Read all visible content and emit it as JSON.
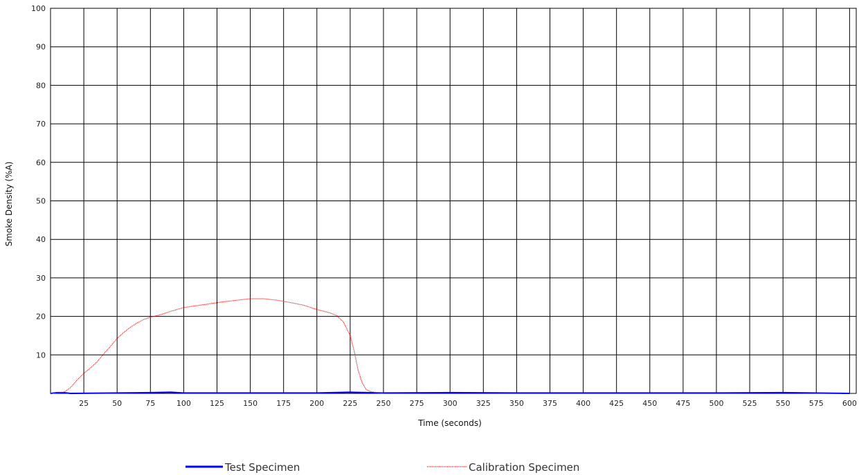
{
  "chart_data": {
    "type": "line",
    "xlabel": "Time (seconds)",
    "ylabel": "Smoke Density (%A)",
    "xlim": [
      0,
      605
    ],
    "ylim": [
      0,
      100
    ],
    "x_ticks": [
      25,
      50,
      75,
      100,
      125,
      150,
      175,
      200,
      225,
      250,
      275,
      300,
      325,
      350,
      375,
      400,
      425,
      450,
      475,
      500,
      525,
      550,
      575,
      600
    ],
    "y_ticks": [
      10,
      20,
      30,
      40,
      50,
      60,
      70,
      80,
      90,
      100
    ],
    "grid": true,
    "legend_position": "bottom",
    "series": [
      {
        "name": "Test Specimen",
        "color": "#0000ff",
        "style": "solid",
        "x": [
          0,
          5,
          10,
          15,
          50,
          75,
          90,
          100,
          150,
          200,
          225,
          250,
          300,
          350,
          400,
          450,
          500,
          550,
          600
        ],
        "y": [
          0,
          0.2,
          0.2,
          0,
          0.1,
          0.2,
          0.3,
          0.1,
          0.1,
          0.1,
          0.3,
          0.1,
          0.2,
          0.1,
          0.1,
          0.1,
          0.1,
          0.2,
          0
        ]
      },
      {
        "name": "Calibration Specimen",
        "color": "#ff0000",
        "style": "dotted",
        "x": [
          0,
          10,
          15,
          20,
          25,
          30,
          35,
          40,
          45,
          50,
          55,
          60,
          65,
          70,
          75,
          80,
          85,
          90,
          95,
          100,
          110,
          120,
          130,
          140,
          150,
          160,
          170,
          180,
          190,
          200,
          210,
          215,
          220,
          225,
          228,
          231,
          234,
          237,
          240,
          245,
          250
        ],
        "y": [
          0,
          0.3,
          1.5,
          3.5,
          5.2,
          6.6,
          8.2,
          10.3,
          12.2,
          14.3,
          15.8,
          17.2,
          18.3,
          19.2,
          19.8,
          20.2,
          20.7,
          21.3,
          21.8,
          22.3,
          22.8,
          23.3,
          23.8,
          24.2,
          24.6,
          24.6,
          24.2,
          23.6,
          22.9,
          21.8,
          20.9,
          20.2,
          18.5,
          15.0,
          11.0,
          6.0,
          2.8,
          1.0,
          0.5,
          0.2,
          0
        ]
      }
    ]
  }
}
